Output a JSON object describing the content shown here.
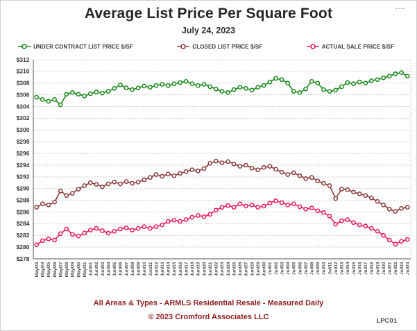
{
  "header": {
    "title": "Average List Price Per Square Foot",
    "subtitle": "July 24, 2023",
    "menu_icon": "..."
  },
  "footer": {
    "line1": "All Areas & Types - ARMLS Residential Resale - Measured Daily",
    "line2": "© 2023 Cromford Associates LLC",
    "code": "LPC01"
  },
  "colors": {
    "title_text": "#262626",
    "footer_text": "#8e1f1f",
    "gridline": "#cccccc",
    "axis": "#555555",
    "under_contract_green": "#178819",
    "closed_brown": "#8a3a3a",
    "actual_sale_pink": "#e8185a"
  },
  "chart_data": {
    "type": "line",
    "title": "Average List Price Per Square Foot",
    "subtitle": "July 24, 2023",
    "xlabel": "",
    "ylabel": "",
    "ylim": [
      278,
      312
    ],
    "y_tick_step": 2,
    "y_ticks": [
      "$312",
      "$310",
      "$308",
      "$306",
      "$304",
      "$302",
      "$300",
      "$298",
      "$296",
      "$294",
      "$292",
      "$290",
      "$288",
      "$286",
      "$284",
      "$282",
      "$280",
      "$278"
    ],
    "grid": "horizontal-dashed",
    "legend_position": "top",
    "marker": "open-circle",
    "categories": [
      "May/23",
      "May/24",
      "May/25",
      "May/26",
      "May/27",
      "May/28",
      "May/29",
      "May/30",
      "May/31",
      "Jun/01",
      "Jun/02",
      "Jun/03",
      "Jun/04",
      "Jun/05",
      "Jun/06",
      "Jun/07",
      "Jun/08",
      "Jun/09",
      "Jun/10",
      "Jun/11",
      "Jun/12",
      "Jun/13",
      "Jun/14",
      "Jun/15",
      "Jun/16",
      "Jun/17",
      "Jun/18",
      "Jun/19",
      "Jun/20",
      "Jun/21",
      "Jun/22",
      "Jun/23",
      "Jun/24",
      "Jun/25",
      "Jun/26",
      "Jun/27",
      "Jun/28",
      "Jun/29",
      "Jun/30",
      "Jul/01",
      "Jul/02",
      "Jul/03",
      "Jul/04",
      "Jul/05",
      "Jul/06",
      "Jul/07",
      "Jul/08",
      "Jul/09",
      "Jul/10",
      "Jul/11",
      "Jul/12",
      "Jul/13",
      "Jul/14",
      "Jul/15",
      "Jul/16",
      "Jul/17",
      "Jul/18",
      "Jul/19",
      "Jul/20",
      "Jul/21",
      "Jul/22",
      "Jul/23",
      "Jul/24"
    ],
    "series": [
      {
        "name": "UNDER CONTRACT LIST PRICE $/SF",
        "color": "#178819",
        "values": [
          305.6,
          305.2,
          304.9,
          305.2,
          304.3,
          306.1,
          306.4,
          306.1,
          305.8,
          306.2,
          306.5,
          306.3,
          306.6,
          307.1,
          307.7,
          307.2,
          306.9,
          307.2,
          307.5,
          307.3,
          307.6,
          307.8,
          307.6,
          307.9,
          308.1,
          308.3,
          307.9,
          307.6,
          307.8,
          307.4,
          307.0,
          306.6,
          306.4,
          306.9,
          307.3,
          307.1,
          306.8,
          307.3,
          307.6,
          308.2,
          308.8,
          308.6,
          308.0,
          306.6,
          306.4,
          307.0,
          308.3,
          308.0,
          306.9,
          306.6,
          306.8,
          307.4,
          308.1,
          307.9,
          308.2,
          308.0,
          308.4,
          308.6,
          308.9,
          309.2,
          309.6,
          309.8,
          309.2
        ]
      },
      {
        "name": "CLOSED LIST PRICE $/SF",
        "color": "#8a3a3a",
        "values": [
          286.8,
          287.4,
          287.2,
          287.7,
          289.6,
          288.8,
          289.2,
          289.9,
          290.5,
          291.0,
          290.7,
          290.3,
          290.8,
          291.1,
          290.8,
          291.2,
          290.9,
          291.1,
          291.5,
          291.9,
          292.4,
          292.1,
          292.5,
          292.2,
          292.6,
          292.9,
          293.2,
          293.0,
          293.4,
          294.3,
          294.7,
          294.4,
          294.6,
          294.2,
          293.8,
          294.0,
          293.5,
          293.2,
          293.6,
          293.8,
          293.3,
          292.8,
          292.4,
          292.7,
          292.2,
          291.7,
          291.9,
          291.3,
          290.9,
          290.5,
          288.3,
          289.9,
          289.8,
          289.4,
          289.1,
          288.8,
          288.4,
          287.8,
          287.2,
          286.5,
          286.1,
          286.6,
          286.8
        ]
      },
      {
        "name": "ACTUAL SALE PRICE $/SF",
        "color": "#e8185a",
        "values": [
          280.4,
          281.1,
          281.4,
          281.2,
          282.3,
          283.1,
          282.2,
          281.9,
          282.4,
          282.9,
          283.2,
          282.8,
          282.4,
          282.7,
          283.1,
          283.3,
          282.9,
          283.2,
          283.5,
          283.2,
          283.5,
          283.8,
          284.4,
          284.6,
          284.4,
          284.7,
          285.1,
          285.4,
          285.2,
          285.6,
          286.3,
          286.8,
          287.1,
          286.8,
          287.4,
          287.0,
          287.2,
          286.8,
          287.0,
          287.5,
          287.9,
          287.6,
          287.2,
          287.4,
          286.9,
          286.5,
          286.7,
          286.2,
          285.9,
          285.3,
          283.9,
          284.5,
          284.7,
          284.2,
          283.8,
          283.6,
          283.2,
          282.7,
          282.0,
          281.2,
          280.5,
          281.0,
          281.3
        ]
      }
    ]
  }
}
